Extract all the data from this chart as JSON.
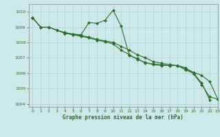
{
  "title": "Graphe pression niveau de la mer (hPa)",
  "background_color": "#cce8e8",
  "line_color": "#2d6e2d",
  "grid_color": "#b0d0d0",
  "ylim": [
    1003.8,
    1010.5
  ],
  "xlim": [
    -0.5,
    23
  ],
  "yticks": [
    1004,
    1005,
    1006,
    1007,
    1008,
    1009,
    1010
  ],
  "xticks": [
    0,
    1,
    2,
    3,
    4,
    5,
    6,
    7,
    8,
    9,
    10,
    11,
    12,
    13,
    14,
    15,
    16,
    17,
    18,
    19,
    20,
    21,
    22,
    23
  ],
  "series": [
    {
      "x": [
        0,
        1,
        2,
        3,
        4,
        5,
        6,
        7,
        8,
        9,
        10,
        11,
        12,
        13,
        14,
        15,
        16,
        17,
        18,
        19,
        20,
        21,
        22
      ],
      "y": [
        1009.6,
        1009.0,
        1009.0,
        1008.8,
        1008.6,
        1008.55,
        1008.5,
        1009.3,
        1009.25,
        1009.45,
        1010.1,
        1009.05,
        1007.15,
        1006.95,
        1006.65,
        1006.6,
        1006.55,
        1006.5,
        1006.5,
        1006.2,
        1006.0,
        1005.35,
        1004.25
      ]
    },
    {
      "x": [
        0,
        1,
        2,
        3,
        4,
        5,
        6,
        7,
        8,
        9,
        10,
        11,
        12,
        13,
        14,
        15,
        16,
        17,
        18,
        19,
        20,
        21,
        22,
        23
      ],
      "y": [
        1009.6,
        1009.0,
        1009.0,
        1008.8,
        1008.65,
        1008.55,
        1008.45,
        1008.35,
        1008.2,
        1008.1,
        1008.0,
        1007.75,
        1007.5,
        1007.2,
        1007.0,
        1006.75,
        1006.65,
        1006.55,
        1006.5,
        1006.3,
        1006.05,
        1005.85,
        1005.45,
        1004.3
      ]
    },
    {
      "x": [
        0,
        1,
        2,
        3,
        4,
        5,
        6,
        7,
        8,
        9,
        10,
        11,
        12,
        13,
        14,
        15,
        16,
        17,
        18,
        19,
        20,
        21,
        22,
        23
      ],
      "y": [
        1009.6,
        1009.0,
        1009.0,
        1008.8,
        1008.6,
        1008.5,
        1008.4,
        1008.3,
        1008.15,
        1008.05,
        1007.9,
        1007.5,
        1007.2,
        1006.9,
        1006.7,
        1006.55,
        1006.5,
        1006.5,
        1006.5,
        1006.35,
        1005.95,
        1005.25,
        1004.45,
        1004.3
      ]
    }
  ]
}
